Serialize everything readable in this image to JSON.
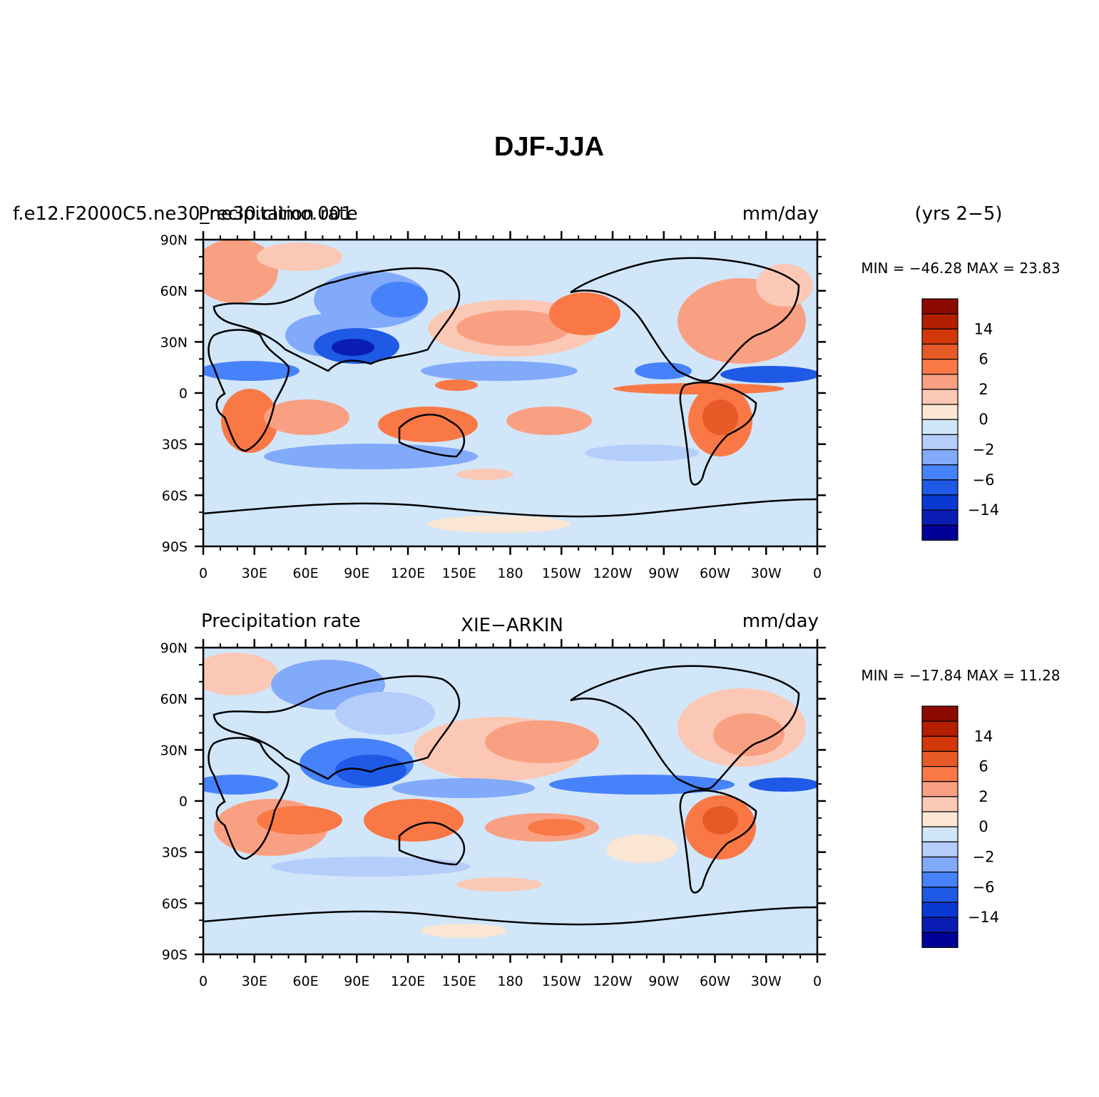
{
  "title": "DJF-JJA",
  "palette": [
    "#000096",
    "#0a1eb4",
    "#0a38d2",
    "#1e5ae6",
    "#4682fa",
    "#82aafa",
    "#b4cdfa",
    "#d2e6fa",
    "#fae6d2",
    "#fac8b4",
    "#faa082",
    "#fa7846",
    "#e65a28",
    "#d2380a",
    "#b41e00",
    "#8c0a00"
  ],
  "colorbar_labels": [
    "14",
    "6",
    "2",
    "0",
    "−2",
    "−6",
    "−14"
  ],
  "lat_labels": [
    "90N",
    "60N",
    "30N",
    "0",
    "30S",
    "60S",
    "90S"
  ],
  "lon_labels": [
    "0",
    "30E",
    "60E",
    "90E",
    "120E",
    "150E",
    "180",
    "150W",
    "120W",
    "90W",
    "60W",
    "30W",
    "0"
  ],
  "panels": [
    {
      "left_label_a": "f.e12.F2000C5.ne30_ne30.climo.001",
      "left_label_b": "Precipitation rate",
      "center_label": "",
      "units": "mm/day",
      "years": "(yrs 2−5)",
      "min_max": "MIN = −46.28  MAX =  23.83"
    },
    {
      "left_label_a": "Precipitation rate",
      "left_label_b": "",
      "center_label": "XIE−ARKIN",
      "units": "mm/day",
      "years": "",
      "min_max": "MIN = −17.84  MAX =  11.28"
    }
  ]
}
